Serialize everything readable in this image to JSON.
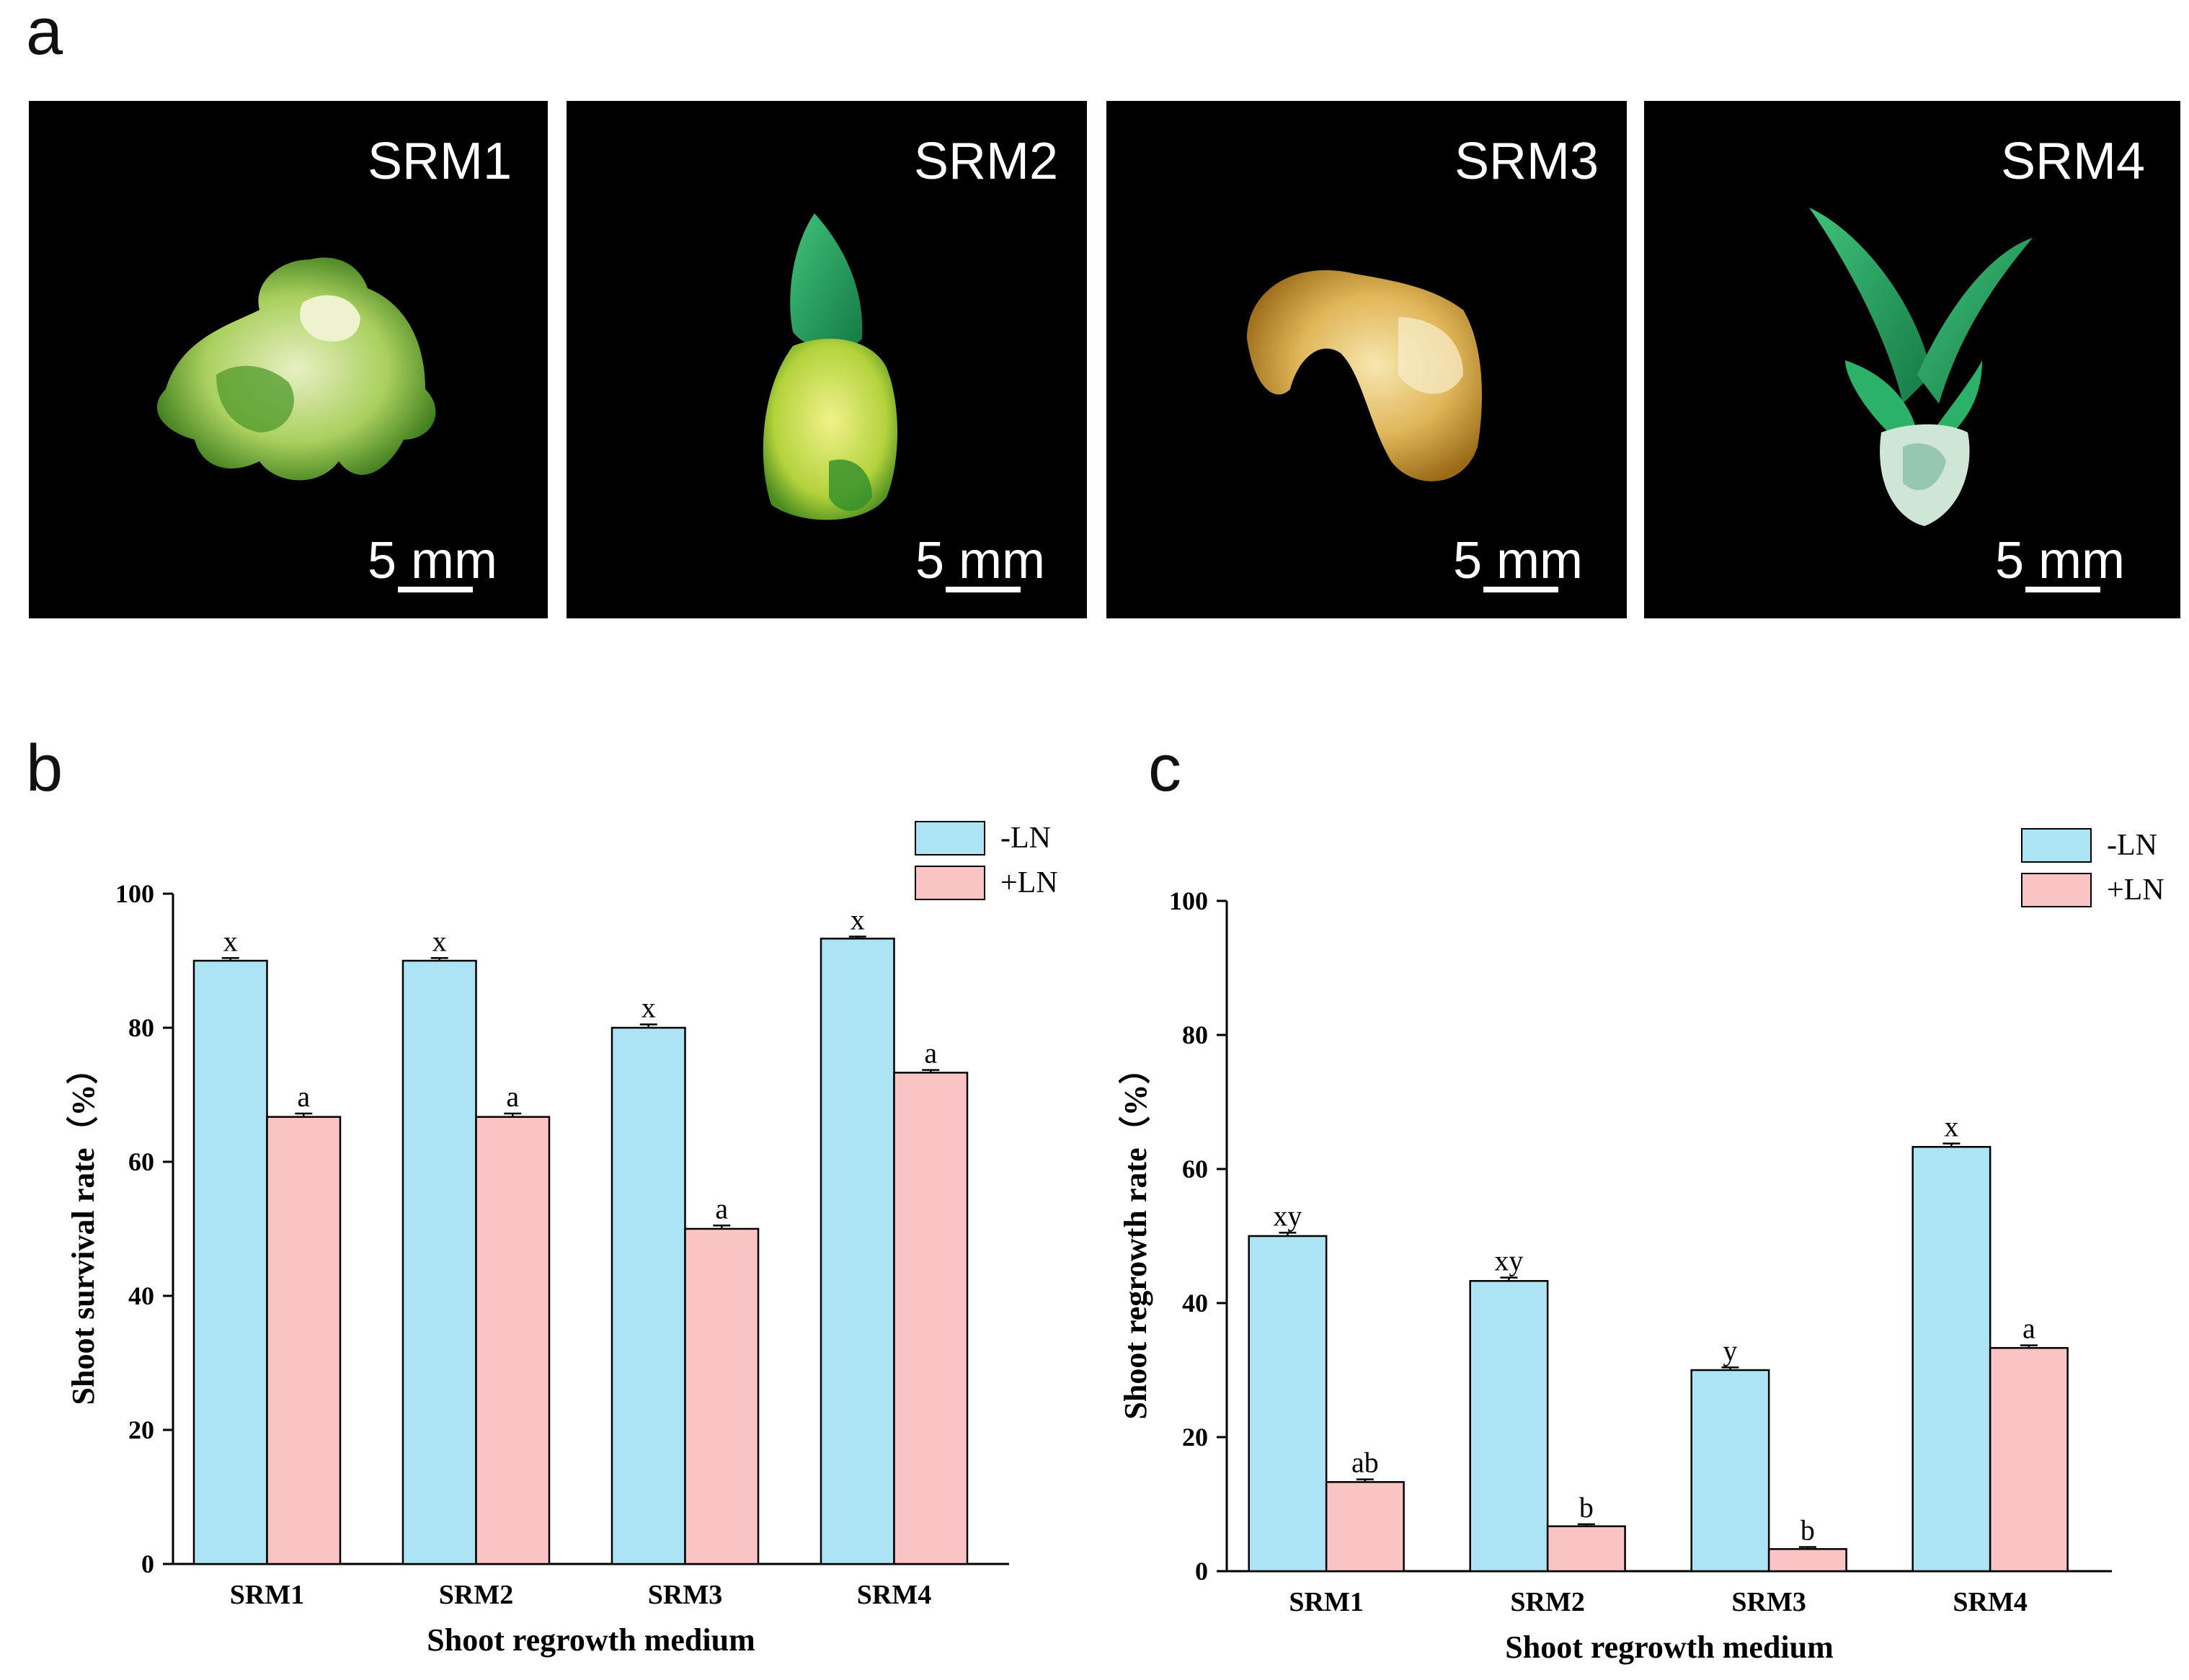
{
  "panel_a": {
    "letter": "a",
    "photos": [
      {
        "label": "SRM1",
        "scale": "5 mm",
        "alt": "compact callus-like explant, pale green and white"
      },
      {
        "label": "SRM2",
        "scale": "5 mm",
        "alt": "yellow-green explant with a single green leaf tip"
      },
      {
        "label": "SRM3",
        "scale": "5 mm",
        "alt": "curved yellow-brown explant"
      },
      {
        "label": "SRM4",
        "scale": "5 mm",
        "alt": "green plantlet with elongated leaves"
      }
    ]
  },
  "panel_b": {
    "letter": "b"
  },
  "panel_c": {
    "letter": "c"
  },
  "colors": {
    "minus_ln": "#ade4f5",
    "plus_ln": "#fbc4c4",
    "axis": "#000000"
  },
  "chart_data": [
    {
      "id": "b",
      "type": "bar",
      "title": "",
      "xlabel": "Shoot regrowth medium",
      "ylabel": "Shoot survival rate（%）",
      "categories": [
        "SRM1",
        "SRM2",
        "SRM3",
        "SRM4"
      ],
      "ylim": [
        0,
        100
      ],
      "yticks": [
        0,
        20,
        40,
        60,
        80,
        100
      ],
      "legend": "top-right",
      "series": [
        {
          "name": "-LN",
          "values": [
            90,
            90,
            80,
            93.3
          ],
          "letters": [
            "x",
            "x",
            "x",
            "x"
          ],
          "error": [
            0.4,
            0.4,
            0.5,
            0.3
          ]
        },
        {
          "name": "+LN",
          "values": [
            66.7,
            66.7,
            50,
            73.3
          ],
          "letters": [
            "a",
            "a",
            "a",
            "a"
          ],
          "error": [
            0.5,
            0.5,
            0.5,
            0.4
          ]
        }
      ]
    },
    {
      "id": "c",
      "type": "bar",
      "title": "",
      "xlabel": "Shoot regrowth medium",
      "ylabel": "Shoot regrowth rate（%）",
      "categories": [
        "SRM1",
        "SRM2",
        "SRM3",
        "SRM4"
      ],
      "ylim": [
        0,
        100
      ],
      "yticks": [
        0,
        20,
        40,
        60,
        80,
        100
      ],
      "legend": "top-right",
      "series": [
        {
          "name": "-LN",
          "values": [
            50,
            43.3,
            30,
            63.3
          ],
          "letters": [
            "xy",
            "xy",
            "y",
            "x"
          ],
          "error": [
            0.5,
            0.5,
            0.4,
            0.5
          ]
        },
        {
          "name": "+LN",
          "values": [
            13.3,
            6.7,
            3.3,
            33.3
          ],
          "letters": [
            "ab",
            "b",
            "b",
            "a"
          ],
          "error": [
            0.4,
            0.3,
            0.3,
            0.4
          ]
        }
      ]
    }
  ]
}
